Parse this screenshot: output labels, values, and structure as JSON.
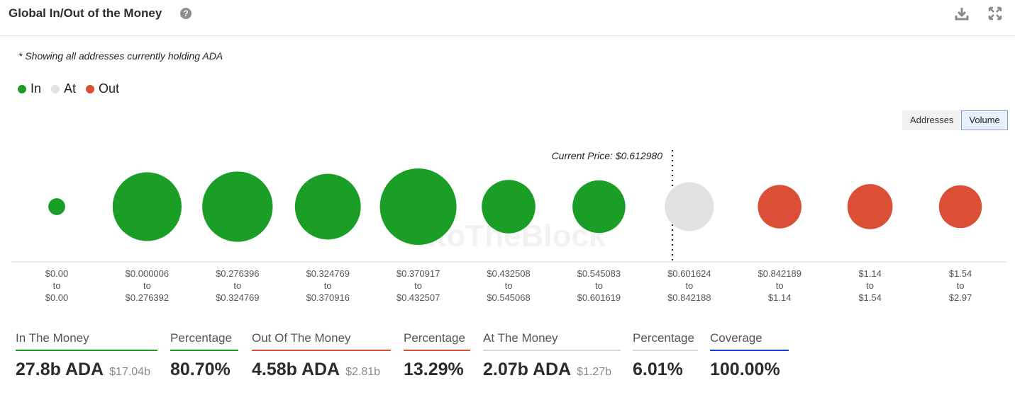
{
  "header": {
    "title": "Global In/Out of the Money",
    "help_icon": "?"
  },
  "note": "* Showing all addresses currently holding ADA",
  "legend": [
    {
      "label": "In",
      "color": "#1a9e25"
    },
    {
      "label": "At",
      "color": "#e2e2e2"
    },
    {
      "label": "Out",
      "color": "#db4f37"
    }
  ],
  "toggle": {
    "addresses": "Addresses",
    "volume": "Volume",
    "selected": "Volume"
  },
  "watermark": "IntoTheBlock",
  "chart_data": {
    "type": "bubble",
    "current_price_label": "Current Price: $0.612980",
    "current_price": 0.61298,
    "bins": [
      {
        "from": "$0.00",
        "to_word": "to",
        "to": "$0.00",
        "status": "In",
        "relative_size": 0.22
      },
      {
        "from": "$0.000006",
        "to_word": "to",
        "to": "$0.276392",
        "status": "In",
        "relative_size": 0.9
      },
      {
        "from": "$0.276396",
        "to_word": "to",
        "to": "$0.324769",
        "status": "In",
        "relative_size": 0.92
      },
      {
        "from": "$0.324769",
        "to_word": "to",
        "to": "$0.370916",
        "status": "In",
        "relative_size": 0.86
      },
      {
        "from": "$0.370917",
        "to_word": "to",
        "to": "$0.432507",
        "status": "In",
        "relative_size": 1.0
      },
      {
        "from": "$0.432508",
        "to_word": "to",
        "to": "$0.545068",
        "status": "In",
        "relative_size": 0.7
      },
      {
        "from": "$0.545083",
        "to_word": "to",
        "to": "$0.601619",
        "status": "In",
        "relative_size": 0.69
      },
      {
        "from": "$0.601624",
        "to_word": "to",
        "to": "$0.842188",
        "status": "At",
        "relative_size": 0.64
      },
      {
        "from": "$0.842189",
        "to_word": "to",
        "to": "$1.14",
        "status": "Out",
        "relative_size": 0.57
      },
      {
        "from": "$1.14",
        "to_word": "to",
        "to": "$1.54",
        "status": "Out",
        "relative_size": 0.59
      },
      {
        "from": "$1.54",
        "to_word": "to",
        "to": "$2.97",
        "status": "Out",
        "relative_size": 0.56
      }
    ]
  },
  "stats": {
    "in_label": "In The Money",
    "in_value": "27.8b ADA",
    "in_usd": "$17.04b",
    "in_pct_label": "Percentage",
    "in_pct": "80.70%",
    "out_label": "Out Of The Money",
    "out_value": "4.58b ADA",
    "out_usd": "$2.81b",
    "out_pct_label": "Percentage",
    "out_pct": "13.29%",
    "at_label": "At The Money",
    "at_value": "2.07b ADA",
    "at_usd": "$1.27b",
    "at_pct_label": "Percentage",
    "at_pct": "6.01%",
    "coverage_label": "Coverage",
    "coverage": "100.00%",
    "colors": {
      "in": "#1a9e25",
      "out": "#db4f37",
      "at": "#d9d9d9",
      "coverage": "#1f3fd6"
    }
  }
}
